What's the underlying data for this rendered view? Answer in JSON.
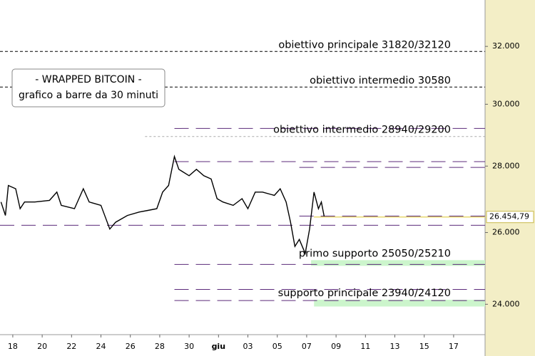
{
  "chart_data": {
    "type": "line",
    "annotation_box": [
      "- WRAPPED BITCOIN -",
      "grafico a barre da 30 minuti"
    ],
    "color": "#000000",
    "log_scale": true,
    "xlim": [
      -0.87,
      32.14
    ],
    "xticks": [
      {
        "value": 0,
        "label": "18"
      },
      {
        "value": 2,
        "label": "20"
      },
      {
        "value": 4,
        "label": "22"
      },
      {
        "value": 6,
        "label": "24"
      },
      {
        "value": 8,
        "label": "26"
      },
      {
        "value": 10,
        "label": "28"
      },
      {
        "value": 12,
        "label": "30"
      },
      {
        "value": 14,
        "label": "giu"
      },
      {
        "value": 16,
        "label": "03"
      },
      {
        "value": 18,
        "label": "05"
      },
      {
        "value": 20,
        "label": "07"
      },
      {
        "value": 22,
        "label": "09"
      },
      {
        "value": 24,
        "label": "11"
      },
      {
        "value": 26,
        "label": "13"
      },
      {
        "value": 28,
        "label": "15"
      },
      {
        "value": 30,
        "label": "17"
      }
    ],
    "ylim": [
      23200,
      33700
    ],
    "yticks": [
      {
        "value": 24000,
        "label": "24.000"
      },
      {
        "value": 26000,
        "label": "26.000"
      },
      {
        "value": 28000,
        "label": "28.000"
      },
      {
        "value": 30000,
        "label": "30.000"
      },
      {
        "value": 32000,
        "label": "32.000"
      }
    ],
    "x": [
      -0.8,
      -0.5,
      -0.3,
      0.2,
      0.5,
      0.8,
      1.5,
      2.5,
      3.0,
      3.3,
      4.2,
      4.8,
      5.2,
      6.0,
      6.6,
      7.0,
      7.8,
      8.6,
      9.2,
      9.8,
      10.2,
      10.6,
      11.0,
      11.3,
      12.0,
      12.5,
      13.0,
      13.5,
      13.9,
      14.3,
      15.0,
      15.6,
      16.0,
      16.5,
      17.0,
      17.8,
      18.2,
      18.6,
      18.9,
      19.2,
      19.5,
      19.9,
      20.2,
      20.5,
      20.8,
      21.0,
      21.2
    ],
    "values": [
      26900,
      26500,
      27400,
      27300,
      26700,
      26900,
      26900,
      26950,
      27200,
      26800,
      26700,
      27300,
      26900,
      26800,
      26100,
      26300,
      26500,
      26600,
      26650,
      26700,
      27200,
      27400,
      28300,
      27900,
      27700,
      27900,
      27700,
      27600,
      27000,
      26900,
      26800,
      27000,
      26700,
      27200,
      27200,
      27100,
      27300,
      26900,
      26300,
      25600,
      25800,
      25400,
      26100,
      27200,
      26700,
      26900,
      26454.79
    ],
    "last_price": {
      "value": 26454.79,
      "label": "26.454,79"
    },
    "levels": [
      {
        "value": 31820,
        "color": "#000000",
        "dash": "4 3",
        "from": -0.87
      },
      {
        "value": 30580,
        "color": "#000000",
        "dash": "4 3",
        "from": -0.87
      },
      {
        "value": 29200,
        "color": "#5b2a7a",
        "dash": "20 10",
        "from": 11
      },
      {
        "value": 28940,
        "color": "#aaaaaa",
        "dash": "3 3",
        "from": 9
      },
      {
        "value": 28140,
        "color": "#5b2a7a",
        "dash": "20 10",
        "from": 11
      },
      {
        "value": 27960,
        "color": "#5b2a7a",
        "dash": "20 10",
        "from": 19.5
      },
      {
        "value": 26480,
        "color": "#5b2a7a",
        "dash": "20 10",
        "from": 19.5
      },
      {
        "value": 26210,
        "color": "#5b2a7a",
        "dash": "20 10",
        "from": -0.87
      },
      {
        "value": 25090,
        "color": "#5b2a7a",
        "dash": "20 10",
        "from": 11
      },
      {
        "value": 24400,
        "color": "#5b2a7a",
        "dash": "20 10",
        "from": 11
      },
      {
        "value": 24100,
        "color": "#5b2a7a",
        "dash": "20 10",
        "from": 11
      }
    ],
    "zones": [
      {
        "lower": 25050,
        "upper": 25210,
        "color": "#ccf5cc",
        "from": 20.3
      },
      {
        "lower": 23940,
        "upper": 24120,
        "color": "#ccf5cc",
        "from": 20.5
      }
    ],
    "annotations": [
      {
        "text": "obiettivo principale 31820/32120",
        "value": 31820
      },
      {
        "text": "obiettivo intermedio 30580",
        "value": 30580
      },
      {
        "text": "obiettivo intermedio 28940/29200",
        "value": 28940
      },
      {
        "text": "primo supporto 25050/25210",
        "value": 25210
      },
      {
        "text": "supporto principale 23940/24120",
        "value": 24120
      }
    ]
  }
}
